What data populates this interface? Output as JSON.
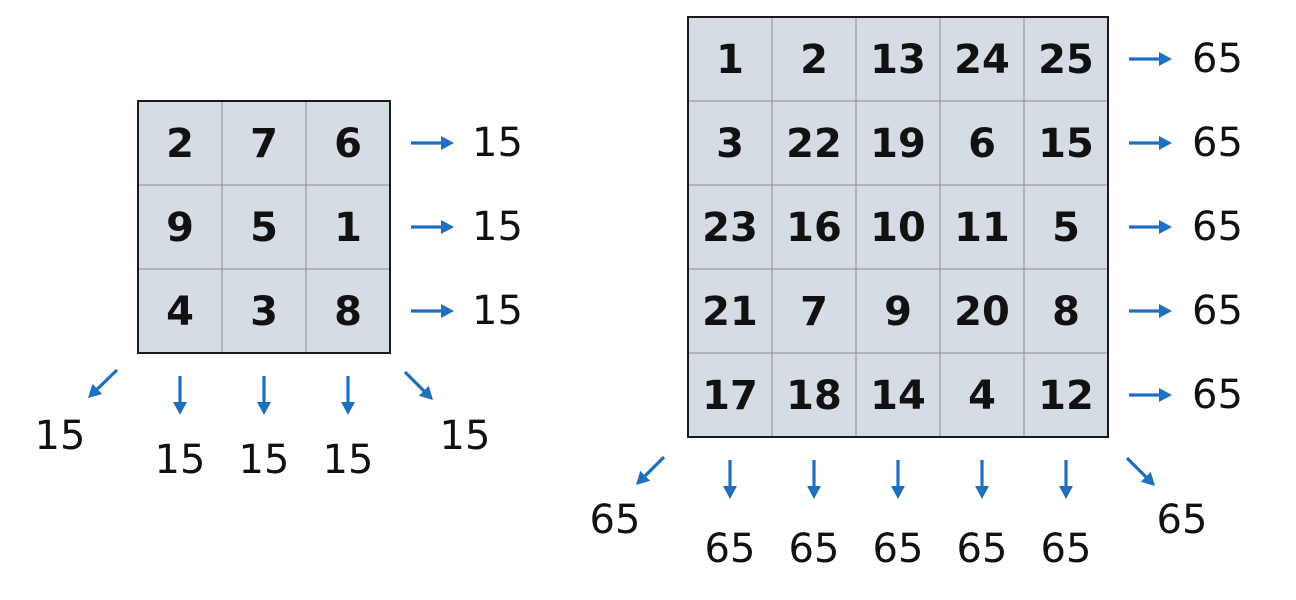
{
  "colors": {
    "cell_fill": "#d6dce4",
    "grid_border": "#1a1a1a",
    "cell_divider": "#8c8c8c",
    "arrow": "#1f6fbf",
    "text": "#111111"
  },
  "squares": [
    {
      "name": "magic-square-3x3",
      "size": 3,
      "magic_sum": "15",
      "cells": [
        [
          "2",
          "7",
          "6"
        ],
        [
          "9",
          "5",
          "1"
        ],
        [
          "4",
          "3",
          "8"
        ]
      ],
      "row_sums": [
        "15",
        "15",
        "15"
      ],
      "column_sums": [
        "15",
        "15",
        "15"
      ],
      "anti_diagonal_sum": "15",
      "main_diagonal_sum": "15"
    },
    {
      "name": "magic-square-5x5",
      "size": 5,
      "magic_sum": "65",
      "cells": [
        [
          "1",
          "2",
          "13",
          "24",
          "25"
        ],
        [
          "3",
          "22",
          "19",
          "6",
          "15"
        ],
        [
          "23",
          "16",
          "10",
          "11",
          "5"
        ],
        [
          "21",
          "7",
          "9",
          "20",
          "8"
        ],
        [
          "17",
          "18",
          "14",
          "4",
          "12"
        ]
      ],
      "row_sums": [
        "65",
        "65",
        "65",
        "65",
        "65"
      ],
      "column_sums": [
        "65",
        "65",
        "65",
        "65",
        "65"
      ],
      "anti_diagonal_sum": "65",
      "main_diagonal_sum": "65"
    }
  ]
}
